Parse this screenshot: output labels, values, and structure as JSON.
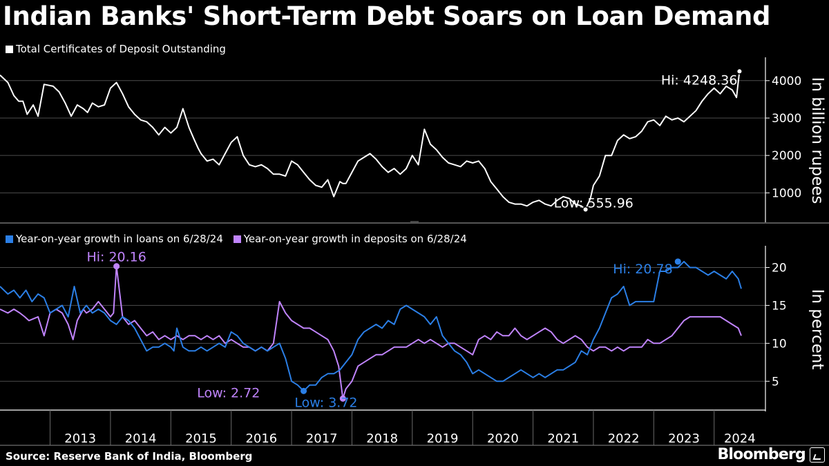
{
  "title": "Indian Banks' Short-Term Debt Soars on Loan Demand",
  "source": "Source: Reserve Bank of India, Bloomberg",
  "brand": "Bloomberg",
  "colors": {
    "background": "#000000",
    "cd_line": "#ffffff",
    "loans": "#2b7fe6",
    "deposits": "#c084fc",
    "grid": "#4d4d4d"
  },
  "chart_data": [
    {
      "type": "line",
      "title": "Total Certificates of Deposit Outstanding",
      "ylabel": "In billion rupees",
      "ylim": [
        250,
        4550
      ],
      "yticks": [
        1000,
        2000,
        3000,
        4000
      ],
      "ytick_labels": [
        "1000",
        "2000",
        "3000",
        "4000"
      ],
      "x_range": [
        2012.17,
        2024.85
      ],
      "series": [
        {
          "name": "Total Certificates of Deposit Outstanding",
          "color": "#ffffff",
          "x": [
            2012.17,
            2012.3,
            2012.4,
            2012.48,
            2012.55,
            2012.62,
            2012.72,
            2012.8,
            2012.9,
            2013.05,
            2013.15,
            2013.25,
            2013.35,
            2013.45,
            2013.55,
            2013.62,
            2013.7,
            2013.8,
            2013.9,
            2014.0,
            2014.1,
            2014.2,
            2014.3,
            2014.4,
            2014.5,
            2014.6,
            2014.7,
            2014.8,
            2014.9,
            2015.0,
            2015.1,
            2015.2,
            2015.3,
            2015.38,
            2015.45,
            2015.5,
            2015.6,
            2015.7,
            2015.8,
            2015.9,
            2016.0,
            2016.1,
            2016.2,
            2016.3,
            2016.4,
            2016.5,
            2016.6,
            2016.7,
            2016.8,
            2016.9,
            2017.0,
            2017.1,
            2017.2,
            2017.3,
            2017.4,
            2017.5,
            2017.6,
            2017.7,
            2017.8,
            2017.85,
            2017.9,
            2018.0,
            2018.1,
            2018.2,
            2018.3,
            2018.4,
            2018.5,
            2018.6,
            2018.7,
            2018.8,
            2018.9,
            2019.0,
            2019.1,
            2019.2,
            2019.3,
            2019.4,
            2019.5,
            2019.6,
            2019.7,
            2019.8,
            2019.9,
            2020.0,
            2020.1,
            2020.2,
            2020.3,
            2020.4,
            2020.5,
            2020.6,
            2020.7,
            2020.8,
            2020.9,
            2021.0,
            2021.1,
            2021.2,
            2021.3,
            2021.4,
            2021.5,
            2021.6,
            2021.7,
            2021.8,
            2021.87,
            2021.95,
            2022.0,
            2022.1,
            2022.2,
            2022.3,
            2022.4,
            2022.5,
            2022.6,
            2022.7,
            2022.8,
            2022.9,
            2023.0,
            2023.1,
            2023.2,
            2023.3,
            2023.4,
            2023.5,
            2023.6,
            2023.7,
            2023.8,
            2023.9,
            2024.0,
            2024.1,
            2024.2,
            2024.3,
            2024.37,
            2024.42
          ],
          "y": [
            4150,
            3950,
            3600,
            3450,
            3450,
            3100,
            3350,
            3050,
            3900,
            3850,
            3700,
            3400,
            3050,
            3350,
            3250,
            3150,
            3400,
            3300,
            3350,
            3800,
            3950,
            3650,
            3300,
            3100,
            2950,
            2900,
            2750,
            2550,
            2750,
            2600,
            2750,
            3250,
            2750,
            2450,
            2200,
            2050,
            1850,
            1900,
            1750,
            2050,
            2350,
            2500,
            2000,
            1750,
            1700,
            1750,
            1650,
            1500,
            1500,
            1450,
            1850,
            1750,
            1550,
            1350,
            1200,
            1150,
            1350,
            900,
            1300,
            1250,
            1250,
            1550,
            1850,
            1950,
            2050,
            1900,
            1700,
            1550,
            1650,
            1500,
            1650,
            2000,
            1750,
            2700,
            2300,
            2150,
            1950,
            1800,
            1750,
            1700,
            1850,
            1800,
            1850,
            1650,
            1300,
            1100,
            900,
            750,
            700,
            700,
            650,
            750,
            800,
            700,
            650,
            800,
            900,
            850,
            700,
            650,
            560,
            850,
            1200,
            1450,
            2000,
            2000,
            2400,
            2550,
            2450,
            2500,
            2650,
            2900,
            2950,
            2800,
            3050,
            2950,
            3000,
            2900,
            3050,
            3200,
            3450,
            3650,
            3800,
            3650,
            3850,
            3750,
            3550,
            4248.36
          ]
        }
      ],
      "annotations": [
        {
          "text": "Hi: 4248.36",
          "x": 2024.42,
          "y": 4248.36
        },
        {
          "text": "Low: 555.96",
          "x": 2021.87,
          "y": 555.96
        }
      ]
    },
    {
      "type": "line",
      "ylabel": "In percent",
      "ylim": [
        1.2,
        22.5
      ],
      "yticks": [
        5,
        10,
        15,
        20
      ],
      "ytick_labels": [
        "5",
        "10",
        "15",
        "20"
      ],
      "x_range": [
        2012.17,
        2024.85
      ],
      "xticks": [
        2013,
        2014,
        2015,
        2016,
        2017,
        2018,
        2019,
        2020,
        2021,
        2022,
        2023,
        2024
      ],
      "xtick_labels": [
        "2013",
        "2014",
        "2015",
        "2016",
        "2017",
        "2018",
        "2019",
        "2020",
        "2021",
        "2022",
        "2023",
        "2024"
      ],
      "series": [
        {
          "name": "Year-on-year growth in loans on 6/28/24",
          "color": "#2b7fe6",
          "x": [
            2012.17,
            2012.3,
            2012.4,
            2012.5,
            2012.6,
            2012.7,
            2012.8,
            2012.9,
            2013.0,
            2013.1,
            2013.2,
            2013.3,
            2013.4,
            2013.5,
            2013.6,
            2013.7,
            2013.8,
            2013.9,
            2014.0,
            2014.1,
            2014.2,
            2014.3,
            2014.4,
            2014.5,
            2014.6,
            2014.7,
            2014.8,
            2014.9,
            2015.0,
            2015.05,
            2015.1,
            2015.2,
            2015.3,
            2015.4,
            2015.5,
            2015.6,
            2015.7,
            2015.8,
            2015.9,
            2016.0,
            2016.1,
            2016.2,
            2016.3,
            2016.4,
            2016.5,
            2016.6,
            2016.7,
            2016.8,
            2016.9,
            2017.0,
            2017.1,
            2017.2,
            2017.3,
            2017.4,
            2017.5,
            2017.6,
            2017.7,
            2017.8,
            2017.9,
            2018.0,
            2018.1,
            2018.2,
            2018.3,
            2018.4,
            2018.5,
            2018.6,
            2018.7,
            2018.8,
            2018.9,
            2019.0,
            2019.1,
            2019.2,
            2019.3,
            2019.4,
            2019.5,
            2019.6,
            2019.7,
            2019.8,
            2019.9,
            2020.0,
            2020.1,
            2020.2,
            2020.3,
            2020.4,
            2020.5,
            2020.6,
            2020.7,
            2020.8,
            2020.9,
            2021.0,
            2021.1,
            2021.2,
            2021.3,
            2021.4,
            2021.5,
            2021.6,
            2021.7,
            2021.8,
            2021.9,
            2022.0,
            2022.1,
            2022.2,
            2022.3,
            2022.4,
            2022.5,
            2022.6,
            2022.7,
            2022.8,
            2022.9,
            2023.0,
            2023.1,
            2023.2,
            2023.3,
            2023.4,
            2023.5,
            2023.6,
            2023.7,
            2023.8,
            2023.9,
            2024.0,
            2024.1,
            2024.2,
            2024.3,
            2024.4,
            2024.45
          ],
          "y": [
            17.5,
            16.5,
            17.0,
            16.0,
            17.0,
            15.5,
            16.5,
            16.0,
            14.0,
            14.5,
            15.0,
            13.5,
            17.5,
            14.0,
            15.0,
            14.0,
            14.5,
            14.0,
            13.0,
            12.5,
            13.5,
            13.0,
            12.0,
            10.5,
            9.0,
            9.5,
            9.5,
            10.0,
            9.5,
            9.0,
            12.0,
            9.5,
            9.0,
            9.0,
            9.5,
            9.0,
            9.5,
            10.0,
            9.5,
            11.5,
            11.0,
            10.0,
            9.5,
            9.0,
            9.5,
            9.0,
            9.5,
            10.0,
            8.0,
            5.0,
            4.5,
            3.72,
            4.5,
            4.5,
            5.5,
            6.0,
            6.0,
            6.5,
            7.5,
            8.5,
            10.5,
            11.5,
            12.0,
            12.5,
            12.0,
            13.0,
            12.5,
            14.5,
            15.0,
            14.5,
            14.0,
            13.5,
            12.5,
            13.5,
            11.0,
            10.0,
            9.0,
            8.5,
            7.5,
            6.0,
            6.5,
            6.0,
            5.5,
            5.0,
            5.0,
            5.5,
            6.0,
            6.5,
            6.0,
            5.5,
            6.0,
            5.5,
            6.0,
            6.5,
            6.5,
            7.0,
            7.5,
            9.0,
            8.5,
            10.5,
            12.0,
            14.0,
            16.0,
            16.5,
            17.5,
            15.0,
            15.5,
            15.5,
            15.5,
            15.5,
            19.5,
            19.5,
            20.0,
            20.0,
            20.78,
            20.0,
            20.0,
            19.5,
            19.0,
            19.5,
            19.0,
            18.5,
            19.5,
            18.5,
            17.2
          ]
        },
        {
          "name": "Year-on-year growth in deposits on 6/28/24",
          "color": "#c084fc",
          "x": [
            2012.17,
            2012.3,
            2012.4,
            2012.5,
            2012.58,
            2012.65,
            2012.8,
            2012.9,
            2013.0,
            2013.1,
            2013.2,
            2013.3,
            2013.38,
            2013.45,
            2013.55,
            2013.6,
            2013.7,
            2013.8,
            2013.9,
            2014.0,
            2014.05,
            2014.1,
            2014.2,
            2014.3,
            2014.4,
            2014.5,
            2014.6,
            2014.7,
            2014.8,
            2014.9,
            2015.0,
            2015.1,
            2015.2,
            2015.3,
            2015.4,
            2015.5,
            2015.6,
            2015.7,
            2015.8,
            2015.9,
            2016.0,
            2016.1,
            2016.2,
            2016.3,
            2016.4,
            2016.5,
            2016.6,
            2016.7,
            2016.8,
            2016.9,
            2017.0,
            2017.1,
            2017.2,
            2017.3,
            2017.4,
            2017.5,
            2017.6,
            2017.7,
            2017.78,
            2017.85,
            2017.9,
            2018.0,
            2018.1,
            2018.2,
            2018.3,
            2018.4,
            2018.5,
            2018.6,
            2018.7,
            2018.8,
            2018.9,
            2019.0,
            2019.1,
            2019.2,
            2019.3,
            2019.4,
            2019.5,
            2019.6,
            2019.7,
            2019.8,
            2019.9,
            2020.0,
            2020.1,
            2020.2,
            2020.3,
            2020.4,
            2020.5,
            2020.6,
            2020.7,
            2020.8,
            2020.9,
            2021.0,
            2021.1,
            2021.2,
            2021.3,
            2021.4,
            2021.5,
            2021.6,
            2021.7,
            2021.8,
            2021.9,
            2022.0,
            2022.1,
            2022.2,
            2022.3,
            2022.4,
            2022.5,
            2022.6,
            2022.7,
            2022.8,
            2022.9,
            2023.0,
            2023.1,
            2023.2,
            2023.3,
            2023.4,
            2023.5,
            2023.6,
            2023.7,
            2023.8,
            2023.9,
            2024.0,
            2024.1,
            2024.2,
            2024.3,
            2024.4,
            2024.45
          ],
          "y": [
            14.5,
            14.0,
            14.5,
            14.0,
            13.5,
            13.0,
            13.5,
            11.0,
            14.0,
            14.5,
            14.0,
            12.5,
            10.5,
            13.0,
            14.5,
            14.0,
            14.5,
            15.5,
            14.5,
            13.5,
            14.0,
            20.16,
            13.5,
            12.5,
            13.0,
            12.0,
            11.0,
            11.5,
            10.5,
            11.0,
            10.5,
            11.0,
            10.5,
            11.0,
            11.0,
            10.5,
            11.0,
            10.5,
            11.0,
            10.0,
            10.5,
            10.0,
            9.5,
            9.5,
            9.0,
            9.5,
            9.0,
            10.0,
            15.5,
            14.0,
            13.0,
            12.5,
            12.0,
            12.0,
            11.5,
            11.0,
            10.5,
            9.0,
            7.0,
            2.72,
            4.0,
            5.0,
            7.0,
            7.5,
            8.0,
            8.5,
            8.5,
            9.0,
            9.5,
            9.5,
            9.5,
            10.0,
            10.5,
            10.0,
            10.5,
            10.0,
            9.5,
            10.0,
            10.0,
            9.5,
            9.0,
            8.5,
            10.5,
            11.0,
            10.5,
            11.5,
            11.0,
            11.0,
            12.0,
            11.0,
            10.5,
            11.0,
            11.5,
            12.0,
            11.5,
            10.5,
            10.0,
            10.5,
            11.0,
            10.5,
            9.5,
            9.0,
            9.5,
            9.5,
            9.0,
            9.5,
            9.0,
            9.5,
            9.5,
            9.5,
            10.5,
            10.0,
            10.0,
            10.5,
            11.0,
            12.0,
            13.0,
            13.5,
            13.5,
            13.5,
            13.5,
            13.5,
            13.5,
            13.0,
            12.5,
            12.0,
            11.0
          ]
        }
      ],
      "annotations": [
        {
          "text": "Hi: 20.16",
          "series": "deposits",
          "x": 2014.1,
          "y": 20.16
        },
        {
          "text": "Low: 2.72",
          "series": "deposits",
          "x": 2017.85,
          "y": 2.72
        },
        {
          "text": "Hi: 20.78",
          "series": "loans",
          "x": 2023.4,
          "y": 20.78
        },
        {
          "text": "Low: 3.72",
          "series": "loans",
          "x": 2017.2,
          "y": 3.72
        }
      ]
    }
  ]
}
